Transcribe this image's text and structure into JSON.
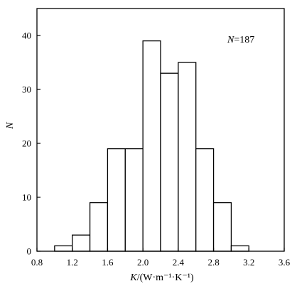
{
  "chart_data": {
    "type": "histogram",
    "annotation": {
      "symbol": "N",
      "text": "=187"
    },
    "xlabel": {
      "symbol": "K",
      "unit": "/(W·m⁻¹·K⁻¹)"
    },
    "ylabel": "N",
    "xlim": [
      0.8,
      3.6
    ],
    "ylim": [
      0,
      45
    ],
    "xticks": [
      "0.8",
      "1.2",
      "1.6",
      "2.0",
      "2.4",
      "2.8",
      "3.2",
      "3.6"
    ],
    "yticks": [
      "0",
      "10",
      "20",
      "30",
      "40"
    ],
    "bin_width": 0.2,
    "bins": [
      {
        "x0": 1.0,
        "x1": 1.2,
        "count": 1
      },
      {
        "x0": 1.2,
        "x1": 1.4,
        "count": 3
      },
      {
        "x0": 1.4,
        "x1": 1.6,
        "count": 9
      },
      {
        "x0": 1.6,
        "x1": 1.8,
        "count": 19
      },
      {
        "x0": 1.8,
        "x1": 2.0,
        "count": 19
      },
      {
        "x0": 2.0,
        "x1": 2.2,
        "count": 39
      },
      {
        "x0": 2.2,
        "x1": 2.4,
        "count": 33
      },
      {
        "x0": 2.4,
        "x1": 2.6,
        "count": 35
      },
      {
        "x0": 2.6,
        "x1": 2.8,
        "count": 19
      },
      {
        "x0": 2.8,
        "x1": 3.0,
        "count": 9
      },
      {
        "x0": 3.0,
        "x1": 3.2,
        "count": 1
      }
    ],
    "grid": false,
    "legend": "none"
  }
}
